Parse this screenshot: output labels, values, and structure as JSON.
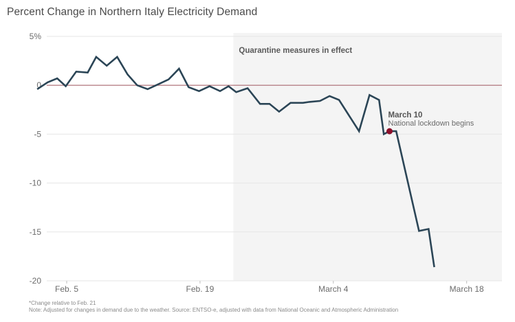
{
  "chart_data": {
    "type": "line",
    "title": "Percent Change in Northern Italy Electricity Demand",
    "xlabel": "",
    "ylabel": "",
    "ylim": [
      -20,
      5
    ],
    "yticks": [
      5,
      0,
      -5,
      -10,
      -15,
      -20
    ],
    "ytick_labels": [
      "5%",
      "0",
      "-5",
      "-10",
      "-15",
      "-20"
    ],
    "xticks": [
      {
        "label": "Feb. 5",
        "day": 5
      },
      {
        "label": "Feb. 19",
        "day": 19
      },
      {
        "label": "March 4",
        "day": 33
      },
      {
        "label": "March 18",
        "day": 47
      }
    ],
    "xlim_days": [
      1.7,
      50
    ],
    "grid": true,
    "series": [
      {
        "name": "Percent change in demand",
        "color": "#2b4556",
        "points": [
          [
            1.9,
            -0.4
          ],
          [
            3.0,
            0.3
          ],
          [
            4.0,
            0.7
          ],
          [
            4.9,
            -0.1
          ],
          [
            6.0,
            1.4
          ],
          [
            7.2,
            1.3
          ],
          [
            8.1,
            2.9
          ],
          [
            9.2,
            2.0
          ],
          [
            10.3,
            2.9
          ],
          [
            11.4,
            1.1
          ],
          [
            12.4,
            0.0
          ],
          [
            13.5,
            -0.4
          ],
          [
            14.6,
            0.1
          ],
          [
            15.7,
            0.6
          ],
          [
            16.8,
            1.7
          ],
          [
            17.8,
            -0.2
          ],
          [
            18.9,
            -0.6
          ],
          [
            20.0,
            -0.1
          ],
          [
            21.1,
            -0.6
          ],
          [
            22.0,
            -0.1
          ],
          [
            22.8,
            -0.7
          ],
          [
            24.0,
            -0.3
          ],
          [
            25.3,
            -1.9
          ],
          [
            26.3,
            -1.9
          ],
          [
            27.3,
            -2.7
          ],
          [
            28.5,
            -1.8
          ],
          [
            29.8,
            -1.8
          ],
          [
            30.5,
            -1.7
          ],
          [
            31.6,
            -1.6
          ],
          [
            32.6,
            -1.1
          ],
          [
            33.6,
            -1.5
          ],
          [
            35.7,
            -4.7
          ],
          [
            36.8,
            -1.0
          ],
          [
            37.8,
            -1.5
          ],
          [
            38.3,
            -5.0
          ],
          [
            38.9,
            -4.7
          ],
          [
            39.6,
            -4.7
          ],
          [
            42.0,
            -14.9
          ],
          [
            43.0,
            -14.7
          ],
          [
            43.6,
            -18.6
          ]
        ]
      }
    ],
    "reference_line": {
      "y": 0,
      "color": "#a8676e"
    },
    "shaded_region": {
      "start_day": 22.5,
      "end_day": 50,
      "label": "Quarantine measures in effect",
      "color": "#f4f4f4"
    },
    "annotations": [
      {
        "day": 38.9,
        "value": -4.7,
        "title": "March 10",
        "text": "National lockdown begins",
        "marker_color": "#8b0f2a"
      }
    ],
    "footnotes": [
      "*Change relative to Feb. 21",
      "Note: Adjusted for changes in demand due to the weather. Source: ENTSO-e, adjusted with data from National Oceanic and Atmospheric Administration"
    ]
  }
}
